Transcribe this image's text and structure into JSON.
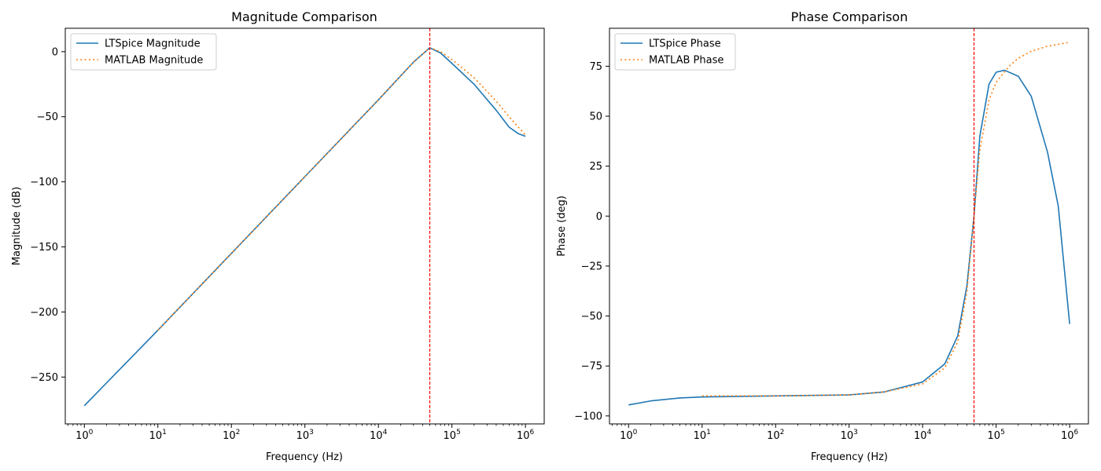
{
  "chart_data": [
    {
      "type": "line",
      "title": "Magnitude Comparison",
      "xlabel": "Frequency (Hz)",
      "ylabel": "Magnitude (dB)",
      "xscale": "log",
      "xlim": [
        0.55,
        1800000
      ],
      "ylim": [
        -286,
        18
      ],
      "xticks": [
        {
          "value": 1,
          "mantissa": "10",
          "exp": "0"
        },
        {
          "value": 10,
          "mantissa": "10",
          "exp": "1"
        },
        {
          "value": 100,
          "mantissa": "10",
          "exp": "2"
        },
        {
          "value": 1000,
          "mantissa": "10",
          "exp": "3"
        },
        {
          "value": 10000,
          "mantissa": "10",
          "exp": "4"
        },
        {
          "value": 100000,
          "mantissa": "10",
          "exp": "5"
        },
        {
          "value": 1000000,
          "mantissa": "10",
          "exp": "6"
        }
      ],
      "yticks": [
        {
          "value": 0,
          "label": "0"
        },
        {
          "value": -50,
          "label": "−50"
        },
        {
          "value": -100,
          "label": "−100"
        },
        {
          "value": -150,
          "label": "−150"
        },
        {
          "value": -200,
          "label": "−200"
        },
        {
          "value": -250,
          "label": "−250"
        }
      ],
      "grid": false,
      "legend_position": "upper-left",
      "vline": {
        "x": 50000,
        "color": "#ff0000",
        "style": "dashed"
      },
      "series": [
        {
          "name": "LTSpice Magnitude",
          "color": "#1f77b4",
          "style": "solid",
          "x": [
            1,
            10,
            100,
            1000,
            10000,
            30000,
            50000,
            70000,
            100000,
            200000,
            400000,
            600000,
            800000,
            1000000
          ],
          "y": [
            -272,
            -214,
            -155,
            -96,
            -37,
            -8,
            3,
            -1,
            -9,
            -25,
            -45,
            -58,
            -63,
            -65
          ]
        },
        {
          "name": "MATLAB Magnitude",
          "color": "#ff7f0e",
          "style": "dotted",
          "x": [
            10,
            100,
            1000,
            10000,
            30000,
            50000,
            70000,
            100000,
            200000,
            400000,
            600000,
            800000,
            1000000
          ],
          "y": [
            -214,
            -155,
            -96,
            -37,
            -8,
            3,
            0,
            -6,
            -20,
            -38,
            -50,
            -58,
            -64
          ]
        }
      ]
    },
    {
      "type": "line",
      "title": "Phase Comparison",
      "xlabel": "Frequency (Hz)",
      "ylabel": "Phase (deg)",
      "xscale": "log",
      "xlim": [
        0.55,
        1800000
      ],
      "ylim": [
        -104,
        94
      ],
      "xticks": [
        {
          "value": 1,
          "mantissa": "10",
          "exp": "0"
        },
        {
          "value": 10,
          "mantissa": "10",
          "exp": "1"
        },
        {
          "value": 100,
          "mantissa": "10",
          "exp": "2"
        },
        {
          "value": 1000,
          "mantissa": "10",
          "exp": "3"
        },
        {
          "value": 10000,
          "mantissa": "10",
          "exp": "4"
        },
        {
          "value": 100000,
          "mantissa": "10",
          "exp": "5"
        },
        {
          "value": 1000000,
          "mantissa": "10",
          "exp": "6"
        }
      ],
      "yticks": [
        {
          "value": 75,
          "label": "75"
        },
        {
          "value": 50,
          "label": "50"
        },
        {
          "value": 25,
          "label": "25"
        },
        {
          "value": 0,
          "label": "0"
        },
        {
          "value": -25,
          "label": "−25"
        },
        {
          "value": -50,
          "label": "−50"
        },
        {
          "value": -75,
          "label": "−75"
        },
        {
          "value": -100,
          "label": "−100"
        }
      ],
      "grid": false,
      "legend_position": "upper-left",
      "vline": {
        "x": 50000,
        "color": "#ff0000",
        "style": "dashed"
      },
      "series": [
        {
          "name": "LTSpice Phase",
          "color": "#1f77b4",
          "style": "solid",
          "x": [
            1,
            2,
            5,
            10,
            100,
            1000,
            3000,
            10000,
            20000,
            30000,
            40000,
            50000,
            60000,
            80000,
            100000,
            130000,
            200000,
            300000,
            500000,
            700000,
            1000000
          ],
          "y": [
            -94.5,
            -92.5,
            -91,
            -90.5,
            -90,
            -89.5,
            -88,
            -83,
            -74,
            -60,
            -35,
            0,
            40,
            66,
            72,
            73,
            70,
            60,
            32,
            5,
            -54
          ]
        },
        {
          "name": "MATLAB Phase",
          "color": "#ff7f0e",
          "style": "dotted",
          "x": [
            10,
            100,
            1000,
            3000,
            10000,
            20000,
            30000,
            40000,
            50000,
            60000,
            80000,
            100000,
            150000,
            200000,
            300000,
            500000,
            1000000
          ],
          "y": [
            -90,
            -90,
            -89.5,
            -88,
            -84,
            -76,
            -63,
            -38,
            0,
            33,
            58,
            67,
            75,
            79,
            82.5,
            85,
            87
          ]
        }
      ]
    }
  ]
}
